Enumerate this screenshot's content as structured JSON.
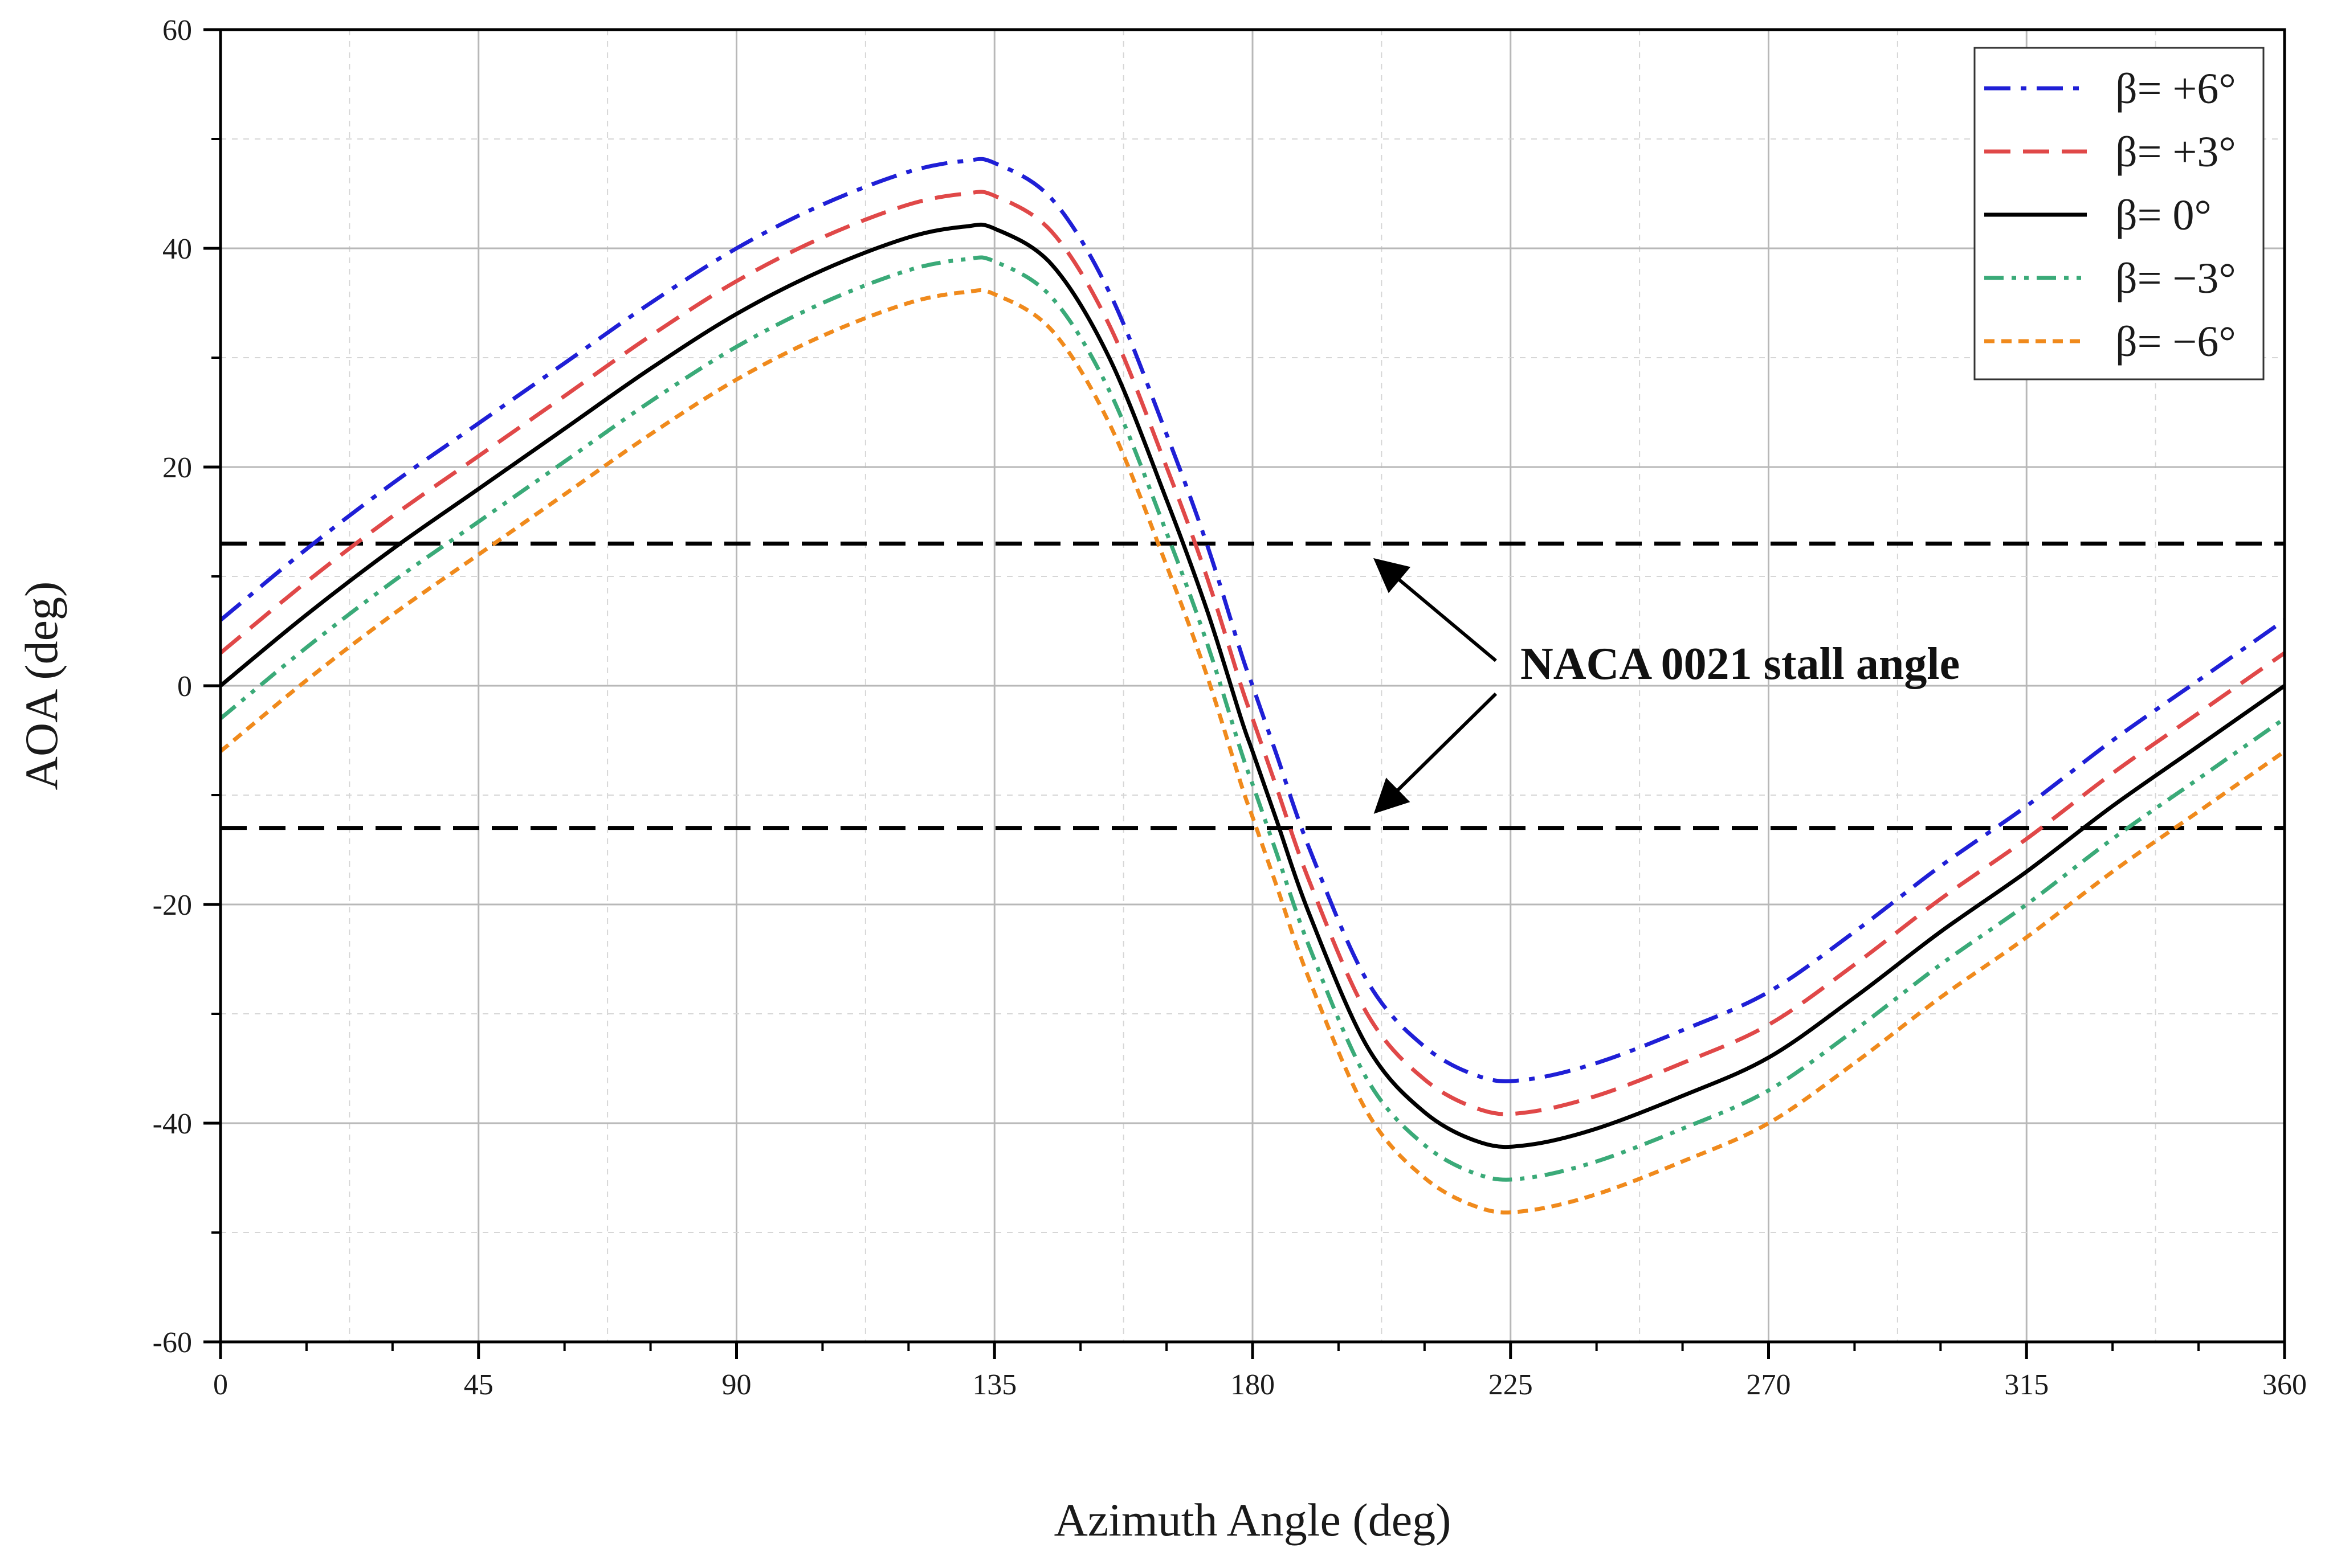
{
  "chart_data": {
    "type": "line",
    "title": "",
    "xlabel": "Azimuth Angle (deg)",
    "ylabel": "AOA (deg)",
    "xlim": [
      0,
      360
    ],
    "ylim": [
      -60,
      60
    ],
    "xticks": [
      0,
      45,
      90,
      135,
      180,
      225,
      270,
      315,
      360
    ],
    "xtick_labels": [
      "0",
      "45",
      "90",
      "135",
      "180",
      "225",
      "270",
      "315",
      "360"
    ],
    "yticks": [
      -60,
      -40,
      -20,
      0,
      20,
      40,
      60
    ],
    "ytick_labels": [
      "-60",
      "-40",
      "-20",
      "0",
      "20",
      "40",
      "60"
    ],
    "grid": true,
    "legend_position": "top-right",
    "x": [
      0,
      15,
      30,
      45,
      60,
      75,
      90,
      105,
      120,
      130,
      135,
      145,
      155,
      165,
      172,
      178,
      180,
      184,
      190,
      200,
      210,
      220,
      228,
      240,
      255,
      270,
      285,
      300,
      315,
      330,
      345,
      360
    ],
    "series": [
      {
        "name": "β= +6°",
        "color": "#1f1fd6",
        "dash": "dashdot",
        "values": [
          6.0,
          12.5,
          18.5,
          24.0,
          29.5,
          35.0,
          40.0,
          44.0,
          47.0,
          48.0,
          47.8,
          44.5,
          36.0,
          23.0,
          13.0,
          3.0,
          0.0,
          -6.0,
          -15.0,
          -27.0,
          -33.0,
          -35.8,
          -36.0,
          -34.5,
          -31.5,
          -28.0,
          -22.5,
          -16.5,
          -11.0,
          -5.0,
          0.5,
          6.0
        ]
      },
      {
        "name": "β= +3°",
        "color": "#e04848",
        "dash": "dash",
        "values": [
          3.0,
          9.5,
          15.5,
          21.0,
          26.5,
          32.0,
          37.0,
          41.0,
          44.0,
          45.0,
          44.8,
          41.5,
          33.0,
          20.0,
          10.0,
          0.0,
          -3.0,
          -9.0,
          -18.0,
          -30.0,
          -36.0,
          -38.8,
          -39.0,
          -37.5,
          -34.5,
          -31.0,
          -25.5,
          -19.5,
          -14.0,
          -8.0,
          -2.5,
          3.0
        ]
      },
      {
        "name": "β= 0°",
        "color": "#000000",
        "dash": "solid",
        "values": [
          0.0,
          6.5,
          12.5,
          18.0,
          23.5,
          29.0,
          34.0,
          38.0,
          41.0,
          42.0,
          41.8,
          38.5,
          30.0,
          17.0,
          7.0,
          -3.0,
          -6.0,
          -12.0,
          -21.0,
          -33.0,
          -39.0,
          -41.8,
          -42.0,
          -40.5,
          -37.5,
          -34.0,
          -28.5,
          -22.5,
          -17.0,
          -11.0,
          -5.5,
          0.0
        ]
      },
      {
        "name": "β= −3°",
        "color": "#3aaa78",
        "dash": "dashdotdot",
        "values": [
          -3.0,
          3.5,
          9.5,
          15.0,
          20.5,
          26.0,
          31.0,
          35.0,
          38.0,
          39.0,
          38.8,
          35.5,
          27.0,
          14.0,
          4.0,
          -6.0,
          -9.0,
          -15.0,
          -24.0,
          -36.0,
          -42.0,
          -44.8,
          -45.0,
          -43.5,
          -40.5,
          -37.0,
          -31.5,
          -25.5,
          -20.0,
          -14.0,
          -8.5,
          -3.0
        ]
      },
      {
        "name": "β= −6°",
        "color": "#f08a1c",
        "dash": "short-dash",
        "values": [
          -6.0,
          0.5,
          6.5,
          12.0,
          17.5,
          23.0,
          28.0,
          32.0,
          35.0,
          36.0,
          35.8,
          32.5,
          24.0,
          11.0,
          1.0,
          -9.0,
          -12.0,
          -18.0,
          -27.0,
          -39.0,
          -45.0,
          -47.8,
          -48.0,
          -46.5,
          -43.5,
          -40.0,
          -34.5,
          -28.5,
          -23.0,
          -17.0,
          -11.5,
          -6.0
        ]
      }
    ],
    "reference_lines": [
      {
        "name": "stall-upper",
        "y": 13,
        "color": "#000000",
        "dash": "dash"
      },
      {
        "name": "stall-lower",
        "y": -13,
        "color": "#000000",
        "dash": "dash"
      }
    ],
    "annotations": [
      {
        "text": "NACA 0021 stall angle",
        "anchor_x": 198,
        "anchor_y": 0,
        "targets": [
          [
            200,
            12
          ],
          [
            200,
            -12
          ]
        ]
      }
    ]
  }
}
